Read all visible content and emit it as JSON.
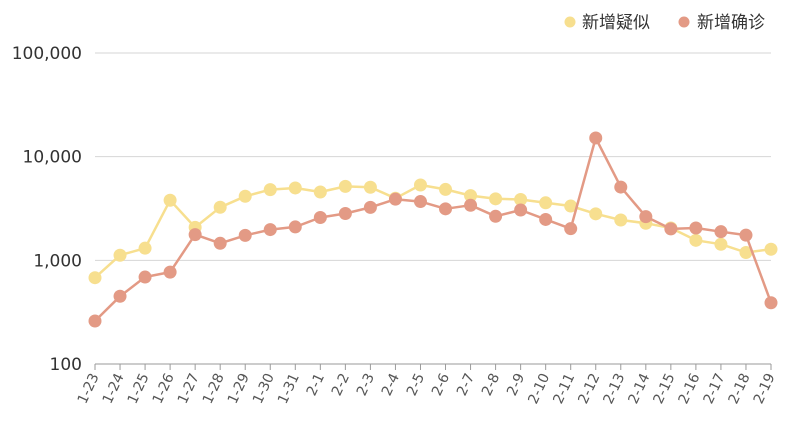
{
  "chart_data": {
    "type": "line",
    "y_scale": "log",
    "ylim": [
      100,
      100000
    ],
    "y_ticks": [
      100,
      1000,
      10000,
      100000
    ],
    "y_tick_labels": [
      "100",
      "1,000",
      "10,000",
      "100,000"
    ],
    "grid": "horizontal",
    "legend_position": "top-right",
    "categories": [
      "1-23",
      "1-24",
      "1-25",
      "1-26",
      "1-27",
      "1-28",
      "1-29",
      "1-30",
      "1-31",
      "2-1",
      "2-2",
      "2-3",
      "2-4",
      "2-5",
      "2-6",
      "2-7",
      "2-8",
      "2-9",
      "2-10",
      "2-11",
      "2-12",
      "2-13",
      "2-14",
      "2-15",
      "2-16",
      "2-17",
      "2-18",
      "2-19"
    ],
    "series": [
      {
        "name": "新增疑似",
        "color": "#f7df8f",
        "values": [
          680,
          1120,
          1310,
          3800,
          2080,
          3250,
          4150,
          4810,
          4990,
          4560,
          5170,
          5070,
          3970,
          5330,
          4830,
          4210,
          3920,
          3860,
          3590,
          3340,
          2810,
          2450,
          2280,
          2050,
          1560,
          1430,
          1190,
          1280
        ]
      },
      {
        "name": "新增确诊",
        "color": "#e39a85",
        "values": [
          260,
          450,
          690,
          770,
          1770,
          1460,
          1740,
          1980,
          2100,
          2590,
          2830,
          3240,
          3890,
          3690,
          3140,
          3400,
          2660,
          3060,
          2480,
          2020,
          15150,
          5090,
          2640,
          2010,
          2050,
          1890,
          1750,
          390
        ]
      }
    ]
  }
}
